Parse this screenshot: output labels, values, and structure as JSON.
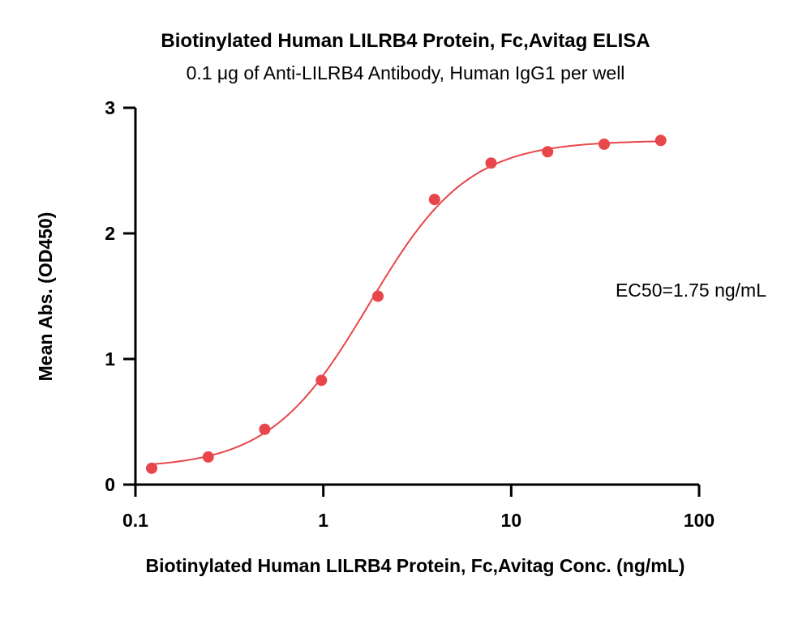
{
  "chart_data": {
    "type": "scatter",
    "title": "Biotinylated Human LILRB4 Protein, Fc,Avitag ELISA",
    "subtitle": "0.1 μg of Anti-LILRB4 Antibody, Human IgG1 per well",
    "xlabel": "Biotinylated Human LILRB4 Protein, Fc,Avitag Conc. (ng/mL)",
    "ylabel": "Mean Abs. (OD450)",
    "xscale": "log",
    "xlim": [
      0.1,
      100
    ],
    "ylim": [
      0,
      3
    ],
    "x_ticks": [
      0.1,
      1,
      10,
      100
    ],
    "x_tick_labels": [
      "0.1",
      "1",
      "10",
      "100"
    ],
    "y_ticks": [
      0,
      1,
      2,
      3
    ],
    "y_tick_labels": [
      "0",
      "1",
      "2",
      "3"
    ],
    "grid": false,
    "legend": "none",
    "annotation": "EC50=1.75 ng/mL",
    "series": [
      {
        "x": [
          0.122,
          0.244,
          0.488,
          0.977,
          1.953,
          3.906,
          7.813,
          15.625,
          31.25,
          62.5
        ],
        "y": [
          0.13,
          0.22,
          0.44,
          0.83,
          1.5,
          2.27,
          2.56,
          2.65,
          2.71,
          2.74
        ],
        "fit": {
          "model": "4PL",
          "bottom": 0.13,
          "top": 2.74,
          "ec50": 1.75,
          "hill": 1.65
        }
      }
    ],
    "colors": {
      "series": "#e8464a"
    }
  }
}
